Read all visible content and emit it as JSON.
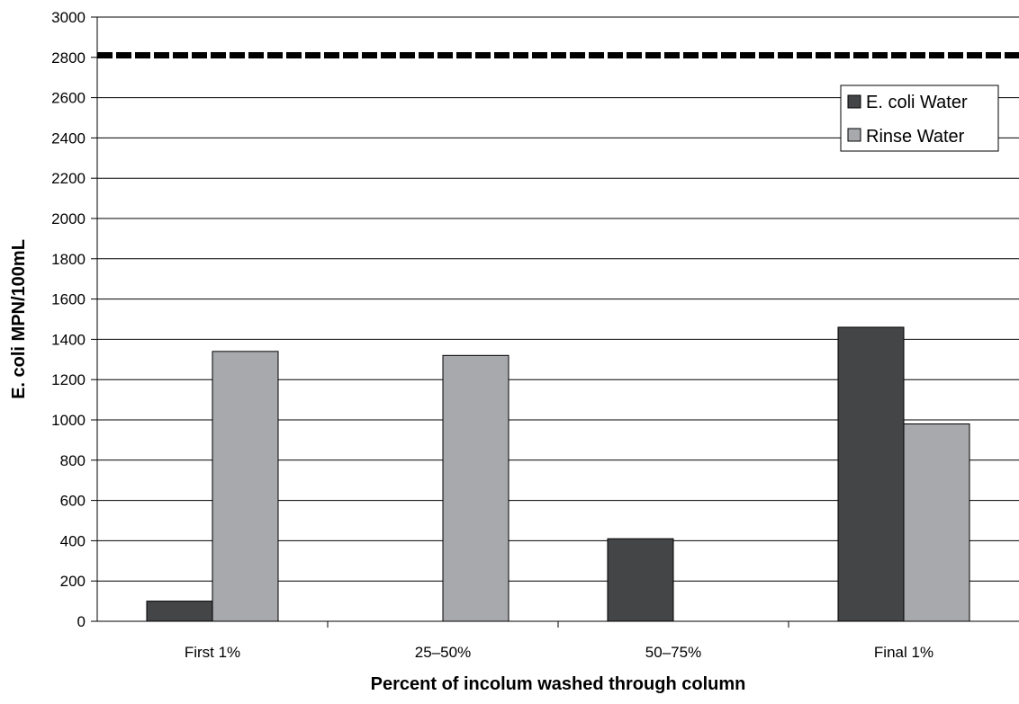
{
  "chart_data": {
    "type": "bar",
    "title": "",
    "xlabel": "Percent of incolum washed through column",
    "ylabel": "E. coli MPN/100mL",
    "categories": [
      "First 1%",
      "25–50%",
      "50–75%",
      "Final 1%"
    ],
    "series": [
      {
        "name": "E. coli Water",
        "values": [
          100,
          0,
          410,
          1460
        ],
        "color": "#444547"
      },
      {
        "name": "Rinse Water",
        "values": [
          1340,
          1320,
          0,
          980
        ],
        "color": "#a7a9ac"
      }
    ],
    "ylim": [
      0,
      3000
    ],
    "yticks": [
      0,
      200,
      400,
      600,
      800,
      1000,
      1200,
      1400,
      1600,
      1800,
      2000,
      2200,
      2400,
      2600,
      2800,
      3000
    ],
    "reference_line": {
      "value": 2810,
      "style": "dashed"
    },
    "grid": true,
    "legend_position": "top-right"
  }
}
